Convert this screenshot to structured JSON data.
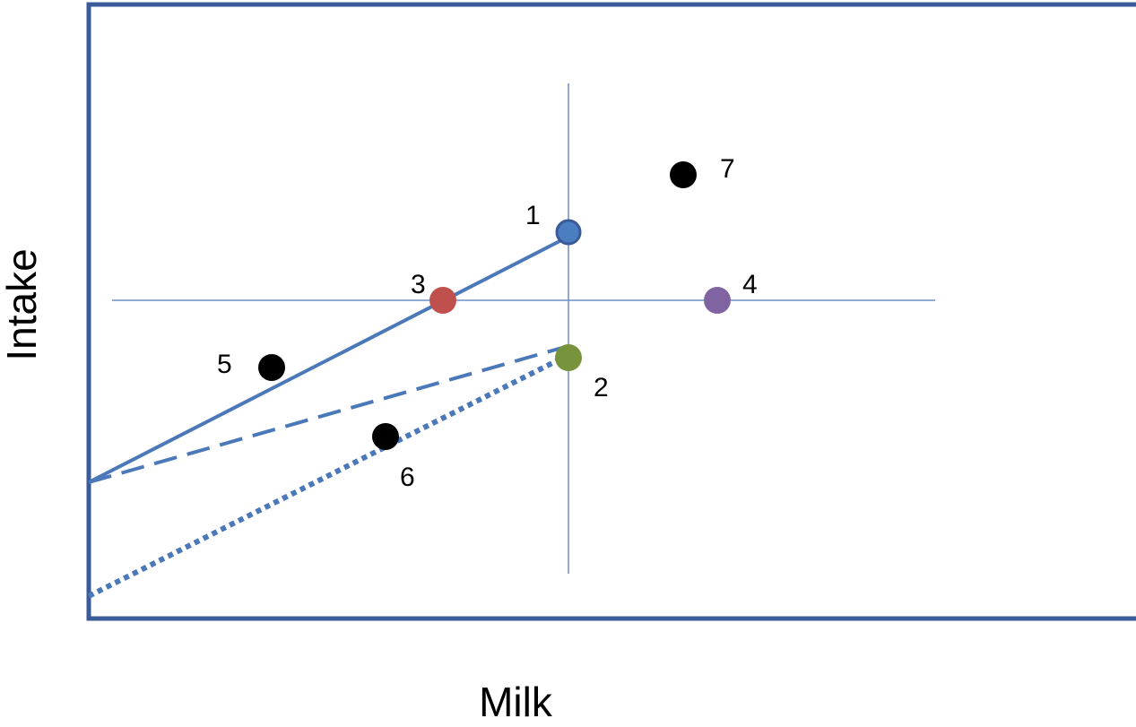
{
  "axes": {
    "x_label": "Milk",
    "y_label": "Intake"
  },
  "colors": {
    "frame": "#3a5a9a",
    "line": "#4a78b8",
    "crosshair": "#6f8fc8",
    "point_1": "#4a7ec0",
    "point_2": "#77943c",
    "point_3": "#c0504d",
    "point_4": "#8064a2",
    "point_other": "#000000"
  },
  "points": [
    {
      "id": "1",
      "color": "point_1"
    },
    {
      "id": "2",
      "color": "point_2"
    },
    {
      "id": "3",
      "color": "point_3"
    },
    {
      "id": "4",
      "color": "point_4"
    },
    {
      "id": "5",
      "color": "point_other"
    },
    {
      "id": "6",
      "color": "point_other"
    },
    {
      "id": "7",
      "color": "point_other"
    }
  ],
  "lines": [
    {
      "style": "solid"
    },
    {
      "style": "dashed"
    },
    {
      "style": "dotted"
    }
  ]
}
